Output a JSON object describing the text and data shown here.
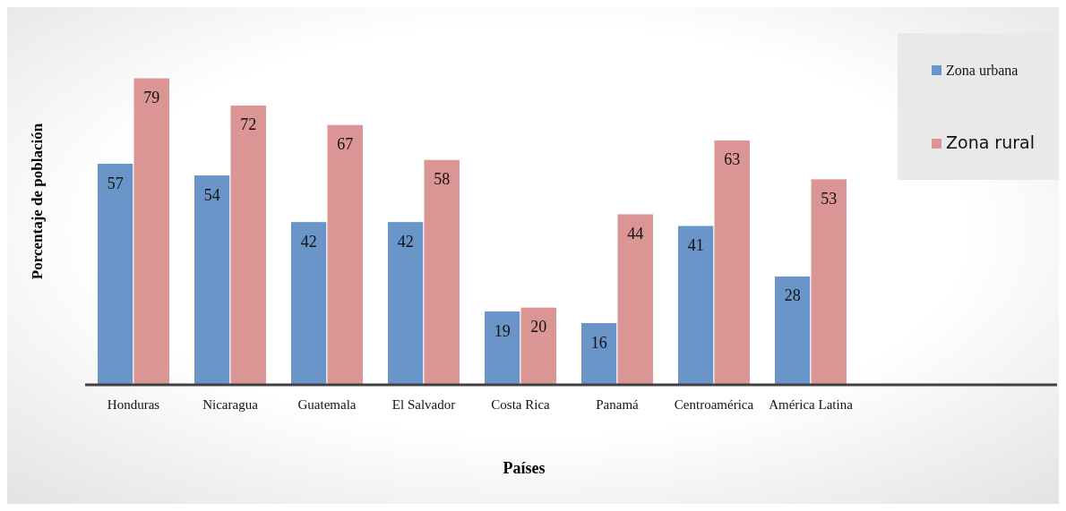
{
  "chart_data": {
    "type": "bar",
    "xlabel": "Países",
    "ylabel": "Porcentaje de población",
    "categories": [
      "Honduras",
      "Nicaragua",
      "Guatemala",
      "El Salvador",
      "Costa Rica",
      "Panamá",
      "Centroamérica",
      "América Latina"
    ],
    "series": [
      {
        "name": "Zona urbana",
        "color": "#6a95c8",
        "values": [
          57,
          54,
          42,
          42,
          19,
          16,
          41,
          28
        ]
      },
      {
        "name": "Zona rural",
        "color": "#db9594",
        "values": [
          79,
          72,
          67,
          58,
          20,
          44,
          63,
          53
        ]
      }
    ],
    "data_labels": true,
    "legend": "top right"
  }
}
